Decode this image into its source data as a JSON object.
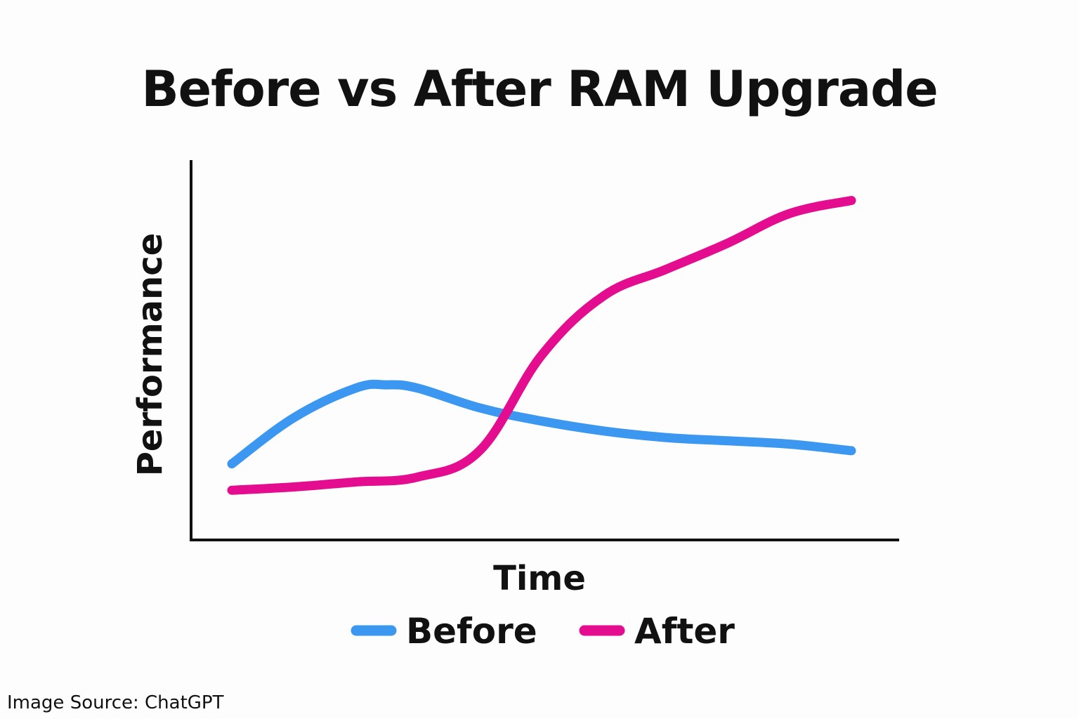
{
  "chart_data": {
    "type": "line",
    "title": "Before vs After RAM Upgrade",
    "xlabel": "Time",
    "ylabel": "Performance",
    "xlim": [
      0,
      10
    ],
    "ylim": [
      0,
      10
    ],
    "grid": false,
    "legend_position": "bottom-center",
    "series": [
      {
        "name": "Before",
        "color": "#3b97f0",
        "x": [
          0,
          1,
          2,
          2.5,
          3,
          4,
          5,
          6,
          7,
          8,
          9,
          10
        ],
        "y": [
          1.5,
          2.9,
          3.8,
          3.9,
          3.8,
          3.2,
          2.8,
          2.5,
          2.3,
          2.2,
          2.1,
          1.9
        ]
      },
      {
        "name": "After",
        "color": "#e50d8f",
        "x": [
          0,
          1,
          2,
          3,
          4,
          5,
          6,
          7,
          8,
          9,
          10
        ],
        "y": [
          0.7,
          0.8,
          0.95,
          1.1,
          1.9,
          4.8,
          6.6,
          7.4,
          8.2,
          9.1,
          9.5
        ]
      }
    ]
  },
  "footer": {
    "source": "Image Source: ChatGPT"
  }
}
